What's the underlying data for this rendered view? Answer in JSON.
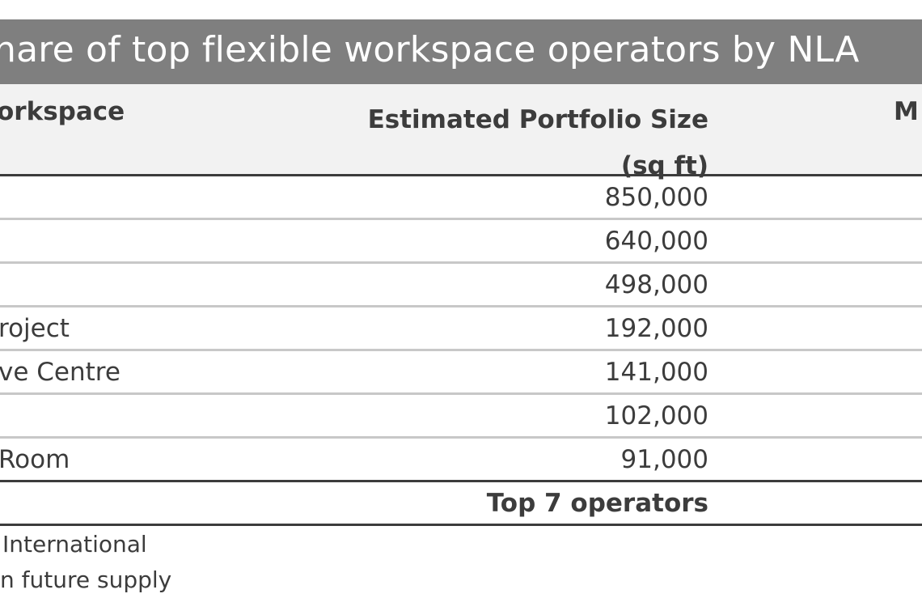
{
  "title": "hare of top flexible workspace operators by NLA",
  "header": {
    "col1": "orkspace",
    "col2_line1": "Estimated Portfolio Size",
    "col2_line2": "(sq ft)",
    "col3": "M"
  },
  "rows": [
    {
      "name": "",
      "value": "850,000"
    },
    {
      "name": "",
      "value": "640,000"
    },
    {
      "name": "",
      "value": "498,000"
    },
    {
      "name": "roject",
      "value": "192,000"
    },
    {
      "name": "ve Centre",
      "value": "141,000"
    },
    {
      "name": "",
      "value": "102,000"
    },
    {
      "name": "Room",
      "value": "91,000"
    }
  ],
  "total_label": "Top 7 operators",
  "footnotes": [
    "International",
    "n future supply"
  ]
}
